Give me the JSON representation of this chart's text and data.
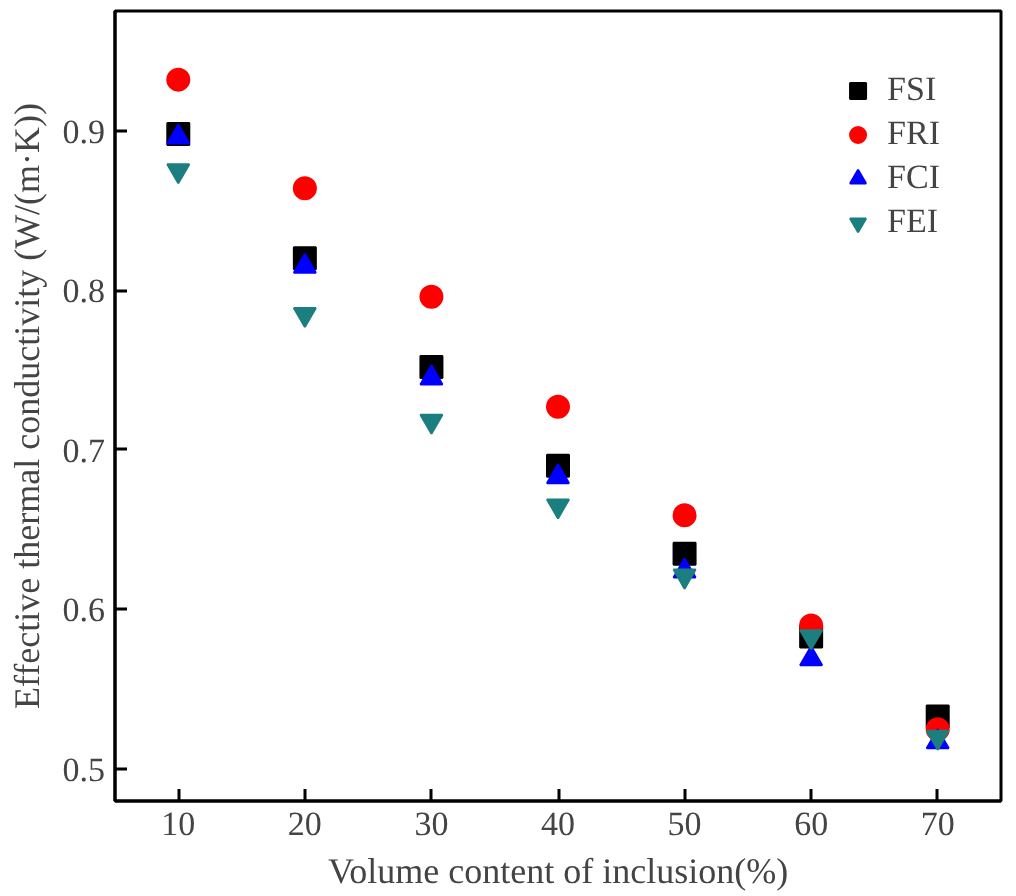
{
  "chart_data": {
    "type": "scatter",
    "xlabel": "Volume content of inclusion(%)",
    "ylabel": "Effective thermal conductivity (W/(m·K))",
    "x": [
      10,
      20,
      30,
      40,
      50,
      60,
      70
    ],
    "series": [
      {
        "name": "FSI",
        "color": "#000000",
        "marker": "square",
        "values": [
          0.898,
          0.82,
          0.752,
          0.69,
          0.635,
          0.583,
          0.533
        ]
      },
      {
        "name": "FRI",
        "color": "#ff0000",
        "marker": "circle",
        "values": [
          0.932,
          0.864,
          0.796,
          0.727,
          0.659,
          0.59,
          0.525
        ]
      },
      {
        "name": "FCI",
        "color": "#0000ff",
        "marker": "triangle",
        "values": [
          0.896,
          0.815,
          0.745,
          0.683,
          0.624,
          0.569,
          0.517
        ]
      },
      {
        "name": "FEI",
        "color": "#1b7f7f",
        "marker": "triangle",
        "values": [
          0.875,
          0.785,
          0.718,
          0.665,
          0.621,
          0.583,
          0.52
        ]
      }
    ],
    "xlim": [
      5,
      75
    ],
    "ylim": [
      0.48,
      0.975
    ],
    "xticks": [
      10,
      20,
      30,
      40,
      50,
      60,
      70
    ],
    "yticks": [
      {
        "value": 0.5,
        "label": "0.5"
      },
      {
        "value": 0.6,
        "label": "0.6"
      },
      {
        "value": 0.7,
        "label": "0.7"
      },
      {
        "value": 0.8,
        "label": "0.8"
      },
      {
        "value": 0.9,
        "label": "0.9"
      }
    ],
    "grid": false,
    "legend": "top right"
  }
}
